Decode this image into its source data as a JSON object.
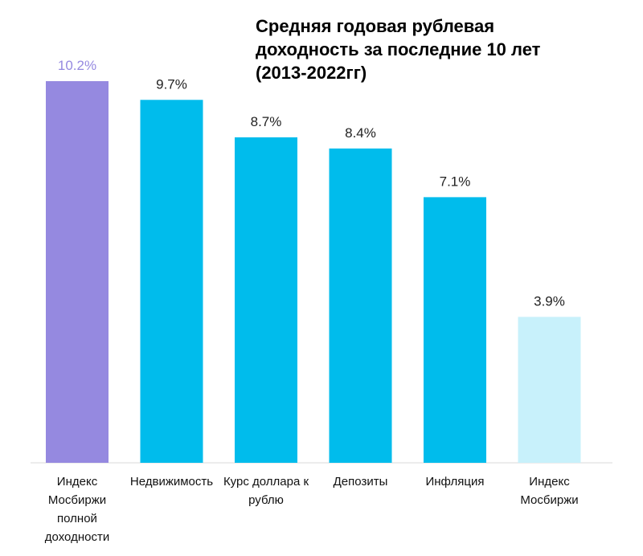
{
  "chart_data": {
    "type": "bar",
    "title_lines": [
      "Средняя годовая рублевая",
      "доходность за последние 10 лет",
      "(2013-2022гг)"
    ],
    "categories": [
      [
        "Индекс",
        "Мосбиржи",
        "полной",
        "доходности"
      ],
      [
        "Недвижимость"
      ],
      [
        "Курс доллара к",
        "рублю"
      ],
      [
        "Депозиты"
      ],
      [
        "Инфляция"
      ],
      [
        "Индекс",
        "Мосбиржи"
      ]
    ],
    "values": [
      10.2,
      9.7,
      8.7,
      8.4,
      7.1,
      3.9
    ],
    "value_labels": [
      "10.2%",
      "9.7%",
      "8.7%",
      "8.4%",
      "7.1%",
      "3.9%"
    ],
    "bar_colors": [
      "#9589e0",
      "#00bcec",
      "#00bcec",
      "#00bcec",
      "#00bcec",
      "#c8f1fb"
    ],
    "label_colors": [
      "#9589e0",
      "#222222",
      "#222222",
      "#222222",
      "#222222",
      "#222222"
    ],
    "ylim": [
      0,
      10.2
    ],
    "grid": false,
    "legend": "none"
  }
}
